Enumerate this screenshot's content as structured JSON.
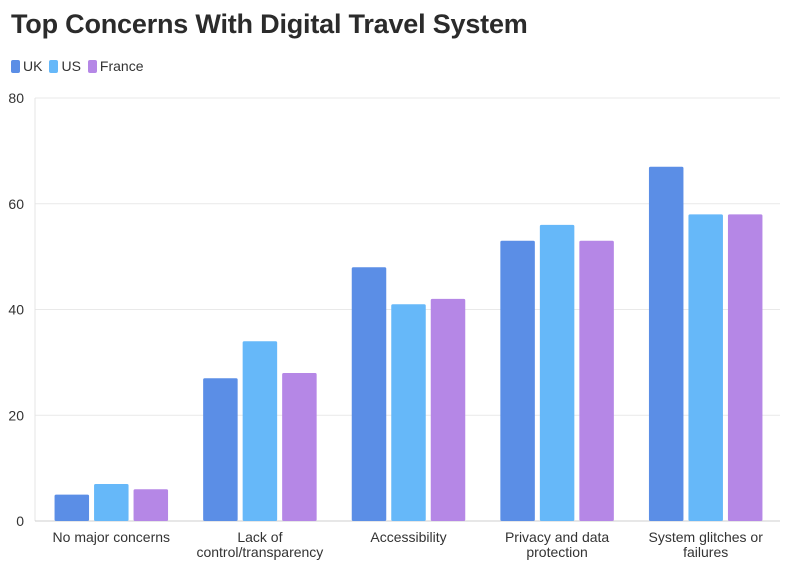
{
  "chart_data": {
    "type": "bar",
    "title": "Top Concerns With Digital Travel System",
    "xlabel": "",
    "ylabel": "",
    "ylim": [
      0,
      80
    ],
    "yticks": [
      0,
      20,
      40,
      60,
      80
    ],
    "ytick_labels": [
      "0",
      "20",
      "40",
      "60",
      "80"
    ],
    "grid": true,
    "legend": "top-left",
    "categories": [
      [
        "No major concerns"
      ],
      [
        "Lack of",
        "control/transparency"
      ],
      [
        "Accessibility"
      ],
      [
        "Privacy and data",
        "protection"
      ],
      [
        "System glitches or",
        "failures"
      ]
    ],
    "series": [
      {
        "name": "UK",
        "color": "#5b8ee6",
        "values": [
          5,
          27,
          48,
          53,
          67
        ]
      },
      {
        "name": "US",
        "color": "#66b8f9",
        "values": [
          7,
          34,
          41,
          56,
          58
        ]
      },
      {
        "name": "France",
        "color": "#b587e6",
        "values": [
          6,
          28,
          42,
          53,
          58
        ]
      }
    ]
  }
}
